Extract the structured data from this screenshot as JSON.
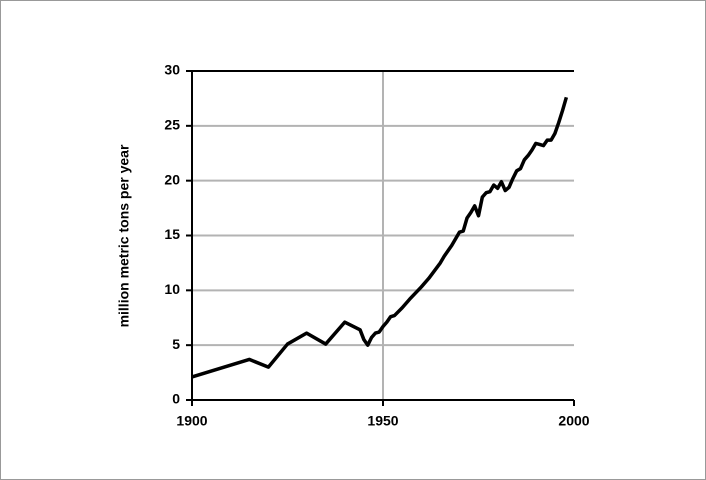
{
  "chart_data": {
    "type": "line",
    "y_label": "million metric tons per year",
    "x": [
      1900,
      1915,
      1920,
      1925,
      1930,
      1935,
      1940,
      1944,
      1945,
      1946,
      1947,
      1948,
      1949,
      1950,
      1951,
      1952,
      1953,
      1955,
      1957,
      1960,
      1962,
      1965,
      1966,
      1968,
      1970,
      1971,
      1972,
      1973,
      1974,
      1975,
      1976,
      1977,
      1978,
      1979,
      1980,
      1981,
      1982,
      1983,
      1984,
      1985,
      1986,
      1987,
      1988,
      1989,
      1990,
      1991,
      1992,
      1993,
      1994,
      1995,
      1996,
      1997,
      1998
    ],
    "values": [
      2.1,
      3.7,
      3.0,
      5.1,
      6.1,
      5.1,
      7.1,
      6.4,
      5.5,
      5.0,
      5.7,
      6.1,
      6.2,
      6.7,
      7.1,
      7.6,
      7.7,
      8.4,
      9.2,
      10.3,
      11.1,
      12.5,
      13.1,
      14.1,
      15.3,
      15.4,
      16.6,
      17.1,
      17.7,
      16.8,
      18.5,
      18.9,
      19.0,
      19.6,
      19.3,
      19.9,
      19.1,
      19.4,
      20.2,
      20.9,
      21.1,
      21.9,
      22.3,
      22.8,
      23.4,
      23.3,
      23.2,
      23.7,
      23.7,
      24.3,
      25.3,
      26.4,
      27.6
    ],
    "color": "#000000",
    "xlim": [
      1900,
      2000
    ],
    "xticks": [
      1900,
      1950,
      2000
    ],
    "ylim": [
      0,
      30
    ],
    "yticks": [
      0,
      5,
      10,
      15,
      20,
      25,
      30
    ],
    "grid": true
  }
}
